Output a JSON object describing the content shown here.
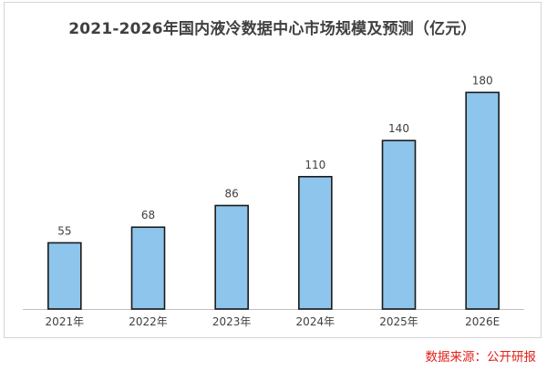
{
  "chart_data": {
    "type": "bar",
    "title": "2021-2026年国内液冷数据中心市场规模及预测（亿元）",
    "categories": [
      "2021年",
      "2022年",
      "2023年",
      "2024年",
      "2025年",
      "2026E"
    ],
    "values": [
      55,
      68,
      86,
      110,
      140,
      180
    ],
    "ylim": [
      0,
      200
    ],
    "grid": false,
    "legend": "none",
    "bar_color": "#8dc5ec",
    "bar_edge_color": "#1a1a1a",
    "axis_color": "#bfbfbf"
  },
  "source_note": "数据来源：公开研报"
}
